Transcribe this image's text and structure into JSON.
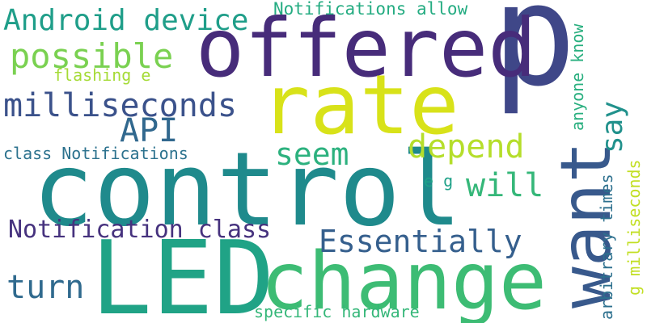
{
  "words": [
    {
      "id": "p",
      "text": "p",
      "color": "#3f4788"
    },
    {
      "id": "offered",
      "text": "offered",
      "color": "#472c7a"
    },
    {
      "id": "rate",
      "text": "rate",
      "color": "#d8e219"
    },
    {
      "id": "control",
      "text": "control",
      "color": "#1f8a8c"
    },
    {
      "id": "led",
      "text": "LED",
      "color": "#20a386"
    },
    {
      "id": "change",
      "text": "change",
      "color": "#3dbc74"
    },
    {
      "id": "want",
      "text": "want",
      "color": "#38598c"
    },
    {
      "id": "android-device",
      "text": "Android device",
      "color": "#1f9e89"
    },
    {
      "id": "notifications-allow",
      "text": "Notifications allow",
      "color": "#25ac82"
    },
    {
      "id": "possible",
      "text": "possible",
      "color": "#7ad151"
    },
    {
      "id": "flashing-e",
      "text": "flashing e",
      "color": "#a5db36"
    },
    {
      "id": "milliseconds",
      "text": "milliseconds",
      "color": "#3b528b"
    },
    {
      "id": "api",
      "text": "API",
      "color": "#31688e"
    },
    {
      "id": "seem",
      "text": "seem",
      "color": "#2cb17e"
    },
    {
      "id": "depend",
      "text": "depend",
      "color": "#b5de2b"
    },
    {
      "id": "will",
      "text": "will",
      "color": "#35b779"
    },
    {
      "id": "class-notifications",
      "text": "class Notifications",
      "color": "#2c728e"
    },
    {
      "id": "notification-class",
      "text": "Notification class",
      "color": "#46327e"
    },
    {
      "id": "essentially",
      "text": "Essentially",
      "color": "#355f8d"
    },
    {
      "id": "turn",
      "text": "turn",
      "color": "#306a8e"
    },
    {
      "id": "specific-hardware",
      "text": "specific hardware",
      "color": "#35b779"
    },
    {
      "id": "e-g",
      "text": "e g",
      "color": "#1fa188"
    },
    {
      "id": "say",
      "text": "say",
      "color": "#21918c"
    },
    {
      "id": "anyone-know",
      "text": "anyone know",
      "color": "#29af7f"
    },
    {
      "id": "arbitrary-times",
      "text": "arbitrary times",
      "color": "#2d708e"
    },
    {
      "id": "g-milliseconds",
      "text": "g milliseconds",
      "color": "#c2df23"
    }
  ]
}
